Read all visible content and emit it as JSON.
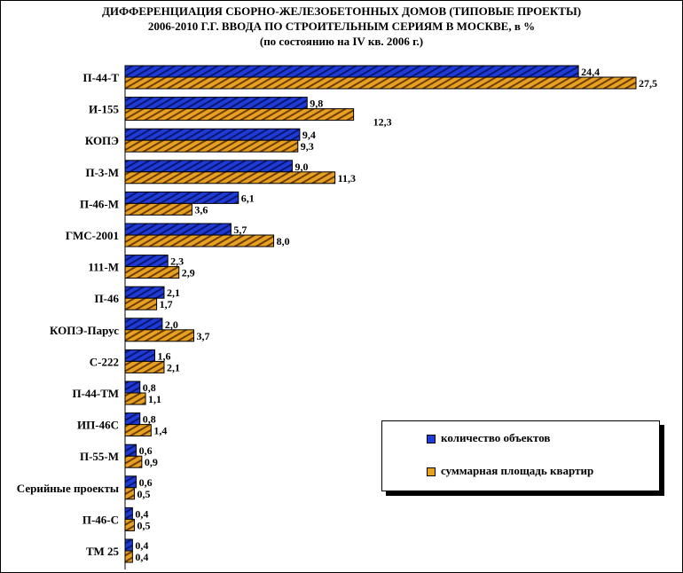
{
  "title": {
    "line1": "ДИФФЕРЕНЦИАЦИЯ СБОРНО-ЖЕЛЕЗОБЕТОННЫХ ДОМОВ (ТИПОВЫЕ ПРОЕКТЫ)",
    "line2": "2006-2010 Г.Г. ВВОДА ПО СТРОИТЕЛЬНЫМ СЕРИЯМ В МОСКВЕ, в %",
    "line3": "(по состоянию на IV кв. 2006 г.)"
  },
  "colors": {
    "series1": "#1f3bd6",
    "series1_stripe": "#0a1670",
    "series2": "#e8a020",
    "series2_stripe": "#6b3e00"
  },
  "chart_data": {
    "type": "bar",
    "orientation": "horizontal",
    "title": "ДИФФЕРЕНЦИАЦИЯ СБОРНО-ЖЕЛЕЗОБЕТОННЫХ ДОМОВ (ТИПОВЫЕ ПРОЕКТЫ) 2006-2010 Г.Г. ВВОДА ПО СТРОИТЕЛЬНЫМ СЕРИЯМ В МОСКВЕ, в %",
    "subtitle": "(по состоянию на IV кв. 2006 г.)",
    "xlabel": "",
    "ylabel": "",
    "xlim": [
      0,
      27.5
    ],
    "grid": false,
    "legend_position": "bottom-right",
    "categories": [
      "П-44-Т",
      "И-155",
      "КОПЭ",
      "П-3-М",
      "П-46-М",
      "ГМС-2001",
      "111-М",
      "П-46",
      "КОПЭ-Парус",
      "С-222",
      "П-44-ТМ",
      "ИП-46С",
      "П-55-М",
      "Серийные проекты",
      "П-46-С",
      "ТМ 25"
    ],
    "series": [
      {
        "name": "количество объектов",
        "values": [
          24.4,
          9.8,
          9.4,
          9.0,
          6.1,
          5.7,
          2.3,
          2.1,
          2.0,
          1.6,
          0.8,
          0.8,
          0.6,
          0.6,
          0.4,
          0.4
        ],
        "labels": [
          "24,4",
          "9,8",
          "9,4",
          "9,0",
          "6,1",
          "5,7",
          "2,3",
          "2,1",
          "2,0",
          "1,6",
          "0,8",
          "0,8",
          "0,6",
          "0,6",
          "0,4",
          "0,4"
        ]
      },
      {
        "name": "суммарная площадь квартир",
        "values": [
          27.5,
          12.3,
          9.3,
          11.3,
          3.6,
          8.0,
          2.9,
          1.7,
          3.7,
          2.1,
          1.1,
          1.4,
          0.9,
          0.5,
          0.5,
          0.4
        ],
        "labels": [
          "27,5",
          "12,3",
          "9,3",
          "11,3",
          "3,6",
          "8,0",
          "2,9",
          "1,7",
          "3,7",
          "2,1",
          "1,1",
          "1,4",
          "0,9",
          "0,5",
          "0,5",
          "0,4"
        ]
      }
    ]
  }
}
